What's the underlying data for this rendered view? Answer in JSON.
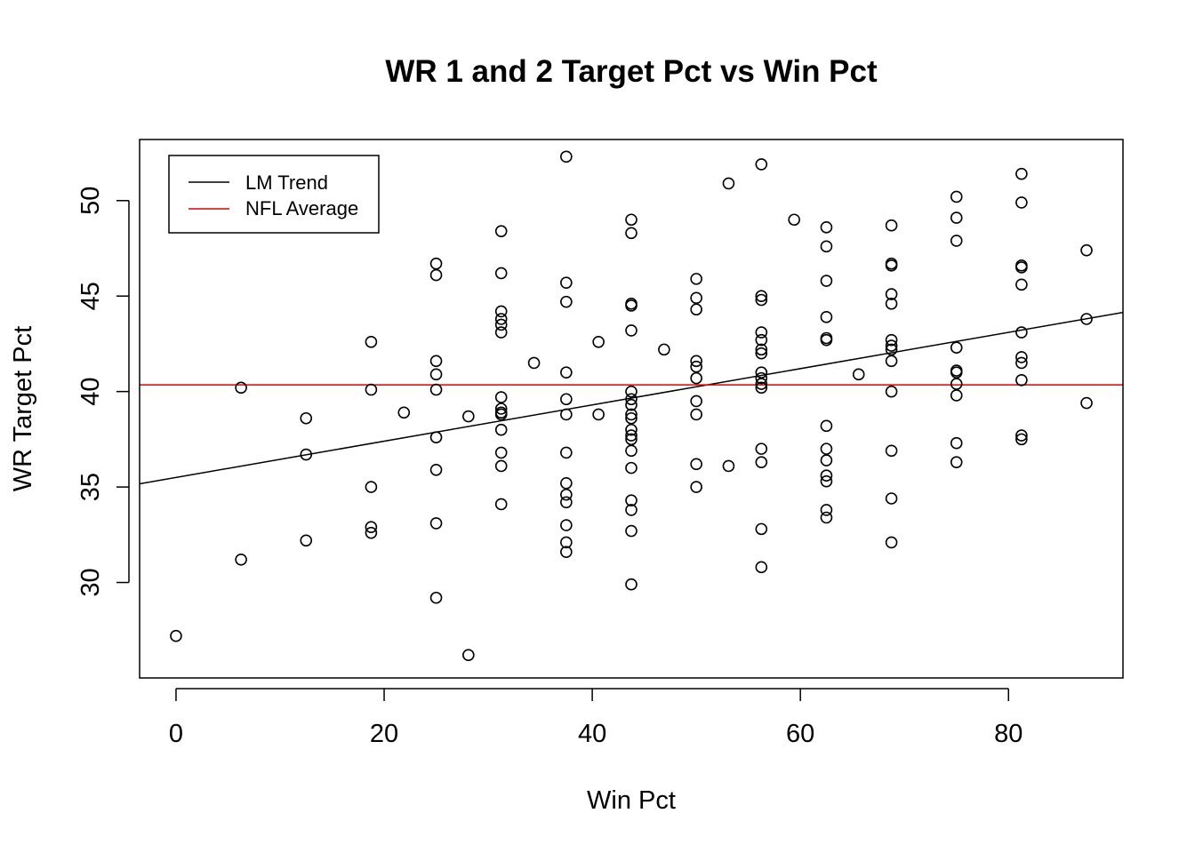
{
  "chart_data": {
    "type": "scatter",
    "title": "WR 1 and 2 Target Pct vs Win Pct",
    "xlabel": "Win Pct",
    "ylabel": "WR Target Pct",
    "xlim": [
      -3.5,
      91
    ],
    "ylim": [
      25.0,
      53.2
    ],
    "x_ticks": [
      0,
      20,
      40,
      60,
      80
    ],
    "y_ticks": [
      30,
      35,
      40,
      45,
      50
    ],
    "grid": false,
    "legend": {
      "position": "top-left",
      "entries": [
        {
          "label": "LM Trend",
          "color": "#000000"
        },
        {
          "label": "NFL Average",
          "color": "#dd0000"
        }
      ]
    },
    "lm_trend": {
      "intercept": 35.5,
      "slope": 0.095,
      "color": "#000000"
    },
    "nfl_average": {
      "value": 40.35,
      "color": "#dd0000"
    },
    "points": [
      [
        0,
        27.2
      ],
      [
        6.25,
        40.2
      ],
      [
        6.25,
        31.2
      ],
      [
        12.5,
        38.6
      ],
      [
        12.5,
        36.7
      ],
      [
        12.5,
        32.2
      ],
      [
        18.75,
        42.6
      ],
      [
        18.75,
        40.1
      ],
      [
        18.75,
        35.0
      ],
      [
        18.75,
        32.9
      ],
      [
        18.75,
        32.6
      ],
      [
        21.9,
        38.9
      ],
      [
        25,
        46.7
      ],
      [
        25,
        46.1
      ],
      [
        25,
        41.6
      ],
      [
        25,
        40.9
      ],
      [
        25,
        40.1
      ],
      [
        25,
        37.6
      ],
      [
        25,
        35.9
      ],
      [
        25,
        33.1
      ],
      [
        25,
        29.2
      ],
      [
        28.1,
        38.7
      ],
      [
        28.1,
        26.2
      ],
      [
        31.25,
        48.4
      ],
      [
        31.25,
        46.2
      ],
      [
        31.25,
        44.2
      ],
      [
        31.25,
        43.8
      ],
      [
        31.25,
        43.5
      ],
      [
        31.25,
        43.1
      ],
      [
        31.25,
        39.7
      ],
      [
        31.25,
        39.1
      ],
      [
        31.25,
        38.9
      ],
      [
        31.25,
        38.8
      ],
      [
        31.25,
        38.0
      ],
      [
        31.25,
        36.8
      ],
      [
        31.25,
        36.1
      ],
      [
        31.25,
        34.1
      ],
      [
        34.4,
        41.5
      ],
      [
        37.5,
        52.3
      ],
      [
        37.5,
        45.7
      ],
      [
        37.5,
        44.7
      ],
      [
        37.5,
        41.0
      ],
      [
        37.5,
        39.6
      ],
      [
        37.5,
        38.8
      ],
      [
        37.5,
        36.8
      ],
      [
        37.5,
        35.2
      ],
      [
        37.5,
        34.6
      ],
      [
        37.5,
        34.2
      ],
      [
        37.5,
        33.0
      ],
      [
        37.5,
        32.1
      ],
      [
        37.5,
        31.6
      ],
      [
        40.6,
        42.6
      ],
      [
        40.6,
        38.8
      ],
      [
        43.75,
        49.0
      ],
      [
        43.75,
        48.3
      ],
      [
        43.75,
        44.6
      ],
      [
        43.75,
        44.5
      ],
      [
        43.75,
        43.2
      ],
      [
        43.75,
        40.0
      ],
      [
        43.75,
        39.6
      ],
      [
        43.75,
        39.3
      ],
      [
        43.75,
        38.8
      ],
      [
        43.75,
        38.6
      ],
      [
        43.75,
        38.0
      ],
      [
        43.75,
        37.7
      ],
      [
        43.75,
        37.5
      ],
      [
        43.75,
        36.9
      ],
      [
        43.75,
        36.0
      ],
      [
        43.75,
        34.3
      ],
      [
        43.75,
        33.8
      ],
      [
        43.75,
        32.7
      ],
      [
        43.75,
        29.9
      ],
      [
        46.9,
        42.2
      ],
      [
        50,
        45.9
      ],
      [
        50,
        44.9
      ],
      [
        50,
        44.3
      ],
      [
        50,
        41.6
      ],
      [
        50,
        41.3
      ],
      [
        50,
        40.7
      ],
      [
        50,
        39.5
      ],
      [
        50,
        38.8
      ],
      [
        50,
        36.2
      ],
      [
        50,
        35.0
      ],
      [
        53.1,
        50.9
      ],
      [
        53.1,
        36.1
      ],
      [
        56.25,
        51.9
      ],
      [
        56.25,
        45.0
      ],
      [
        56.25,
        44.8
      ],
      [
        56.25,
        43.1
      ],
      [
        56.25,
        42.7
      ],
      [
        56.25,
        42.2
      ],
      [
        56.25,
        42.0
      ],
      [
        56.25,
        41.0
      ],
      [
        56.25,
        40.7
      ],
      [
        56.25,
        40.4
      ],
      [
        56.25,
        40.2
      ],
      [
        56.25,
        37.0
      ],
      [
        56.25,
        36.3
      ],
      [
        56.25,
        32.8
      ],
      [
        56.25,
        30.8
      ],
      [
        59.4,
        49.0
      ],
      [
        62.5,
        48.6
      ],
      [
        62.5,
        47.6
      ],
      [
        62.5,
        45.8
      ],
      [
        62.5,
        43.9
      ],
      [
        62.5,
        42.8
      ],
      [
        62.5,
        42.7
      ],
      [
        62.5,
        38.2
      ],
      [
        62.5,
        37.0
      ],
      [
        62.5,
        36.4
      ],
      [
        62.5,
        35.6
      ],
      [
        62.5,
        35.3
      ],
      [
        62.5,
        33.8
      ],
      [
        62.5,
        33.4
      ],
      [
        65.6,
        40.9
      ],
      [
        68.75,
        48.7
      ],
      [
        68.75,
        46.7
      ],
      [
        68.75,
        46.6
      ],
      [
        68.75,
        45.1
      ],
      [
        68.75,
        44.6
      ],
      [
        68.75,
        42.7
      ],
      [
        68.75,
        42.4
      ],
      [
        68.75,
        42.2
      ],
      [
        68.75,
        41.6
      ],
      [
        68.75,
        40.0
      ],
      [
        68.75,
        36.9
      ],
      [
        68.75,
        34.4
      ],
      [
        68.75,
        32.1
      ],
      [
        75,
        50.2
      ],
      [
        75,
        49.1
      ],
      [
        75,
        47.9
      ],
      [
        75,
        42.3
      ],
      [
        75,
        41.1
      ],
      [
        75,
        41.0
      ],
      [
        75,
        40.4
      ],
      [
        75,
        39.8
      ],
      [
        75,
        37.3
      ],
      [
        75,
        36.3
      ],
      [
        81.25,
        51.4
      ],
      [
        81.25,
        49.9
      ],
      [
        81.25,
        46.6
      ],
      [
        81.25,
        46.5
      ],
      [
        81.25,
        45.6
      ],
      [
        81.25,
        43.1
      ],
      [
        81.25,
        41.8
      ],
      [
        81.25,
        41.5
      ],
      [
        81.25,
        40.6
      ],
      [
        81.25,
        37.7
      ],
      [
        81.25,
        37.5
      ],
      [
        87.5,
        47.4
      ],
      [
        87.5,
        43.8
      ],
      [
        87.5,
        39.4
      ]
    ]
  }
}
